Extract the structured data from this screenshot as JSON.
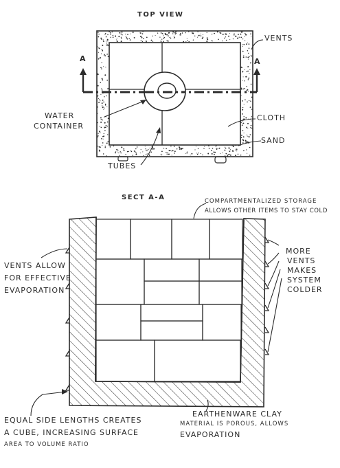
{
  "top_view": {
    "title": "TOP VIEW",
    "labels": {
      "vents": "VENTS",
      "section_marker_left": "A",
      "section_marker_right": "A",
      "water_container_line1": "WATER",
      "water_container_line2": "CONTAINER",
      "cloth": "CLOTH",
      "sand": "SAND",
      "tubes": "TUBES"
    }
  },
  "section": {
    "title": "SECT A-A",
    "labels": {
      "storage_line1": "COMPARTMENTALIZED STORAGE",
      "storage_line2": "ALLOWS OTHER ITEMS TO STAY COLD",
      "vents_left_line1": "VENTS ALLOW",
      "vents_left_line2": "FOR EFFECTIVE",
      "vents_left_line3": "EVAPORATION",
      "more_vents_line1": "MORE",
      "more_vents_line2": "VENTS",
      "more_vents_line3": "MAKES",
      "more_vents_line4": "SYSTEM",
      "more_vents_line5": "COLDER",
      "cube_line1": "EQUAL SIDE LENGTHS CREATES",
      "cube_line2": "A CUBE, INCREASING SURFACE",
      "cube_line3": "AREA TO VOLUME RATIO",
      "clay_line1": "EARTHENWARE CLAY",
      "clay_line2": "MATERIAL IS POROUS, ALLOWS",
      "clay_line3": "EVAPORATION"
    }
  },
  "colors": {
    "ink": "#2b2b2b",
    "paper": "#ffffff"
  }
}
